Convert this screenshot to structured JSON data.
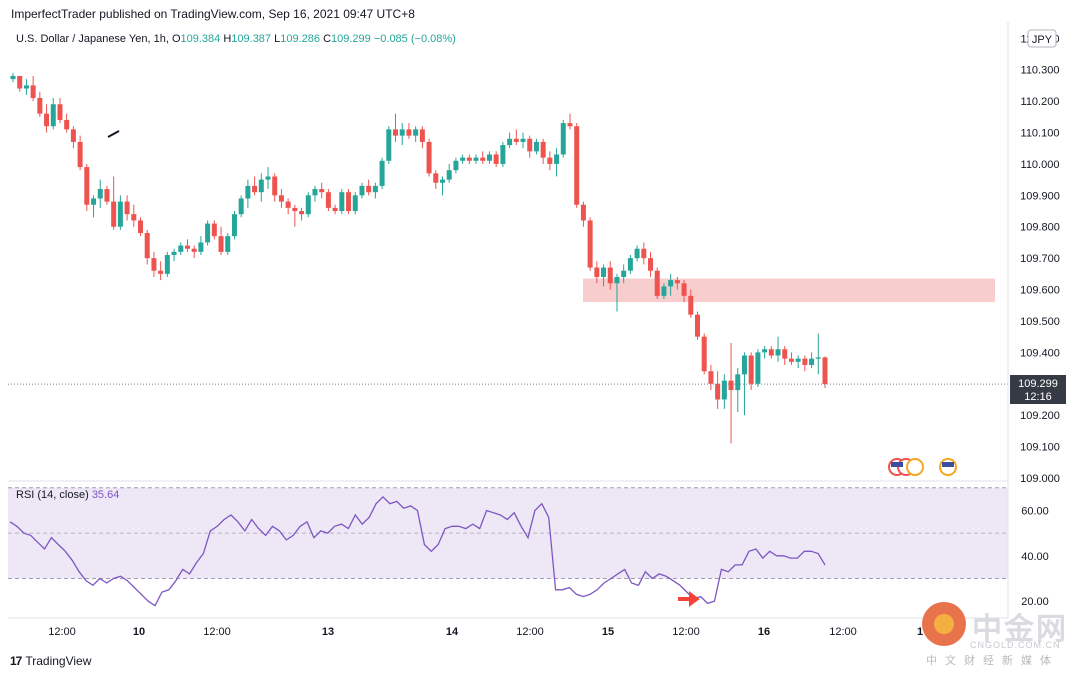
{
  "header": {
    "caption": "ImperfectTrader published on TradingView.com, Sep 16, 2021 09:47 UTC+8",
    "symbol": "U.S. Dollar / Japanese Yen, 1h, ",
    "o_label": "O",
    "o_value": "109.384",
    "h_label": "H",
    "h_value": "109.387",
    "l_label": "L",
    "l_value": "109.286",
    "c_label": "C",
    "c_value": "109.299",
    "change": "−0.085 (−0.08%)"
  },
  "currency_badge": "JPY",
  "last_price": {
    "value": "109.299",
    "countdown": "12:16"
  },
  "rsi": {
    "label": "RSI (14, close)",
    "value": "35.64"
  },
  "footer": {
    "logo_mark": "17",
    "logo_text": "TradingView"
  },
  "watermark": {
    "cn": "中金网",
    "url": "CNGOLD.COM.CN",
    "sub": "中文财经新媒体"
  },
  "colors": {
    "up": "#26a69a",
    "down": "#ef5350",
    "rsi_line": "#7e57c2",
    "zone": "#f8cdcd",
    "rsi_band": "#ede7f6"
  },
  "chart_data": [
    {
      "type": "candlestick",
      "ylim": [
        109.0,
        110.42
      ],
      "y_ticks": [
        "109.000",
        "109.100",
        "109.200",
        "109.300",
        "109.400",
        "109.500",
        "109.600",
        "109.700",
        "109.800",
        "109.900",
        "110.000",
        "110.100",
        "110.200",
        "110.300",
        "110.400"
      ],
      "x_ticks": [
        "12:00",
        "10",
        "12:00",
        "13",
        "14",
        "12:00",
        "15",
        "12:00",
        "16",
        "12:00",
        "1"
      ],
      "zone": {
        "low": 109.56,
        "high": 109.635
      },
      "candles": [
        [
          110.27,
          110.29,
          110.26,
          110.28
        ],
        [
          110.28,
          110.28,
          110.23,
          110.24
        ],
        [
          110.24,
          110.27,
          110.22,
          110.25
        ],
        [
          110.25,
          110.28,
          110.2,
          110.21
        ],
        [
          110.21,
          110.23,
          110.15,
          110.16
        ],
        [
          110.16,
          110.19,
          110.1,
          110.12
        ],
        [
          110.12,
          110.21,
          110.11,
          110.19
        ],
        [
          110.19,
          110.21,
          110.13,
          110.14
        ],
        [
          110.14,
          110.16,
          110.1,
          110.11
        ],
        [
          110.11,
          110.12,
          110.05,
          110.07
        ],
        [
          110.07,
          110.09,
          109.98,
          109.99
        ],
        [
          109.99,
          110.0,
          109.85,
          109.87
        ],
        [
          109.87,
          109.9,
          109.83,
          109.89
        ],
        [
          109.89,
          109.95,
          109.86,
          109.92
        ],
        [
          109.92,
          109.93,
          109.87,
          109.88
        ],
        [
          109.88,
          109.96,
          109.79,
          109.8
        ],
        [
          109.8,
          109.9,
          109.79,
          109.88
        ],
        [
          109.88,
          109.9,
          109.82,
          109.84
        ],
        [
          109.84,
          109.87,
          109.8,
          109.82
        ],
        [
          109.82,
          109.83,
          109.77,
          109.78
        ],
        [
          109.78,
          109.79,
          109.68,
          109.7
        ],
        [
          109.7,
          109.72,
          109.64,
          109.66
        ],
        [
          109.66,
          109.69,
          109.63,
          109.65
        ],
        [
          109.65,
          109.72,
          109.64,
          109.71
        ],
        [
          109.71,
          109.73,
          109.69,
          109.72
        ],
        [
          109.72,
          109.75,
          109.71,
          109.74
        ],
        [
          109.74,
          109.76,
          109.72,
          109.73
        ],
        [
          109.73,
          109.74,
          109.7,
          109.72
        ],
        [
          109.72,
          109.77,
          109.71,
          109.75
        ],
        [
          109.75,
          109.82,
          109.74,
          109.81
        ],
        [
          109.81,
          109.82,
          109.76,
          109.77
        ],
        [
          109.77,
          109.8,
          109.71,
          109.72
        ],
        [
          109.72,
          109.78,
          109.71,
          109.77
        ],
        [
          109.77,
          109.85,
          109.76,
          109.84
        ],
        [
          109.84,
          109.9,
          109.83,
          109.89
        ],
        [
          109.89,
          109.95,
          109.86,
          109.93
        ],
        [
          109.93,
          109.96,
          109.9,
          109.91
        ],
        [
          109.91,
          109.97,
          109.88,
          109.95
        ],
        [
          109.95,
          109.99,
          109.92,
          109.96
        ],
        [
          109.96,
          109.97,
          109.88,
          109.9
        ],
        [
          109.9,
          109.92,
          109.86,
          109.88
        ],
        [
          109.88,
          109.89,
          109.84,
          109.86
        ],
        [
          109.86,
          109.87,
          109.8,
          109.85
        ],
        [
          109.85,
          109.86,
          109.82,
          109.84
        ],
        [
          109.84,
          109.91,
          109.83,
          109.9
        ],
        [
          109.9,
          109.93,
          109.88,
          109.92
        ],
        [
          109.92,
          109.94,
          109.89,
          109.91
        ],
        [
          109.91,
          109.92,
          109.85,
          109.86
        ],
        [
          109.86,
          109.87,
          109.84,
          109.85
        ],
        [
          109.85,
          109.92,
          109.84,
          109.91
        ],
        [
          109.91,
          109.92,
          109.84,
          109.85
        ],
        [
          109.85,
          109.91,
          109.84,
          109.9
        ],
        [
          109.9,
          109.94,
          109.89,
          109.93
        ],
        [
          109.93,
          109.95,
          109.9,
          109.91
        ],
        [
          109.91,
          109.94,
          109.89,
          109.93
        ],
        [
          109.93,
          110.02,
          109.92,
          110.01
        ],
        [
          110.01,
          110.12,
          110.0,
          110.11
        ],
        [
          110.11,
          110.16,
          110.07,
          110.09
        ],
        [
          110.09,
          110.13,
          110.06,
          110.11
        ],
        [
          110.11,
          110.13,
          110.08,
          110.09
        ],
        [
          110.09,
          110.12,
          110.07,
          110.11
        ],
        [
          110.11,
          110.12,
          110.05,
          110.07
        ],
        [
          110.07,
          110.08,
          109.96,
          109.97
        ],
        [
          109.97,
          109.98,
          109.92,
          109.94
        ],
        [
          109.94,
          109.96,
          109.9,
          109.95
        ],
        [
          109.95,
          110.0,
          109.94,
          109.98
        ],
        [
          109.98,
          110.02,
          109.97,
          110.01
        ],
        [
          110.01,
          110.03,
          110.0,
          110.02
        ],
        [
          110.02,
          110.03,
          110.0,
          110.01
        ],
        [
          110.01,
          110.03,
          110.0,
          110.02
        ],
        [
          110.02,
          110.04,
          110.0,
          110.01
        ],
        [
          110.01,
          110.04,
          110.0,
          110.03
        ],
        [
          110.03,
          110.04,
          109.99,
          110.0
        ],
        [
          110.0,
          110.07,
          109.99,
          110.06
        ],
        [
          110.06,
          110.1,
          110.05,
          110.08
        ],
        [
          110.08,
          110.11,
          110.06,
          110.07
        ],
        [
          110.07,
          110.1,
          110.05,
          110.08
        ],
        [
          110.08,
          110.09,
          110.02,
          110.04
        ],
        [
          110.04,
          110.08,
          110.03,
          110.07
        ],
        [
          110.07,
          110.08,
          110.0,
          110.02
        ],
        [
          110.02,
          110.04,
          109.98,
          110.0
        ],
        [
          110.0,
          110.05,
          109.96,
          110.03
        ],
        [
          110.03,
          110.14,
          110.02,
          110.13
        ],
        [
          110.13,
          110.16,
          110.11,
          110.12
        ],
        [
          110.12,
          110.13,
          109.86,
          109.87
        ],
        [
          109.87,
          109.88,
          109.8,
          109.82
        ],
        [
          109.82,
          109.83,
          109.66,
          109.67
        ],
        [
          109.67,
          109.69,
          109.62,
          109.64
        ],
        [
          109.64,
          109.68,
          109.61,
          109.67
        ],
        [
          109.67,
          109.69,
          109.6,
          109.62
        ],
        [
          109.62,
          109.65,
          109.53,
          109.64
        ],
        [
          109.64,
          109.68,
          109.62,
          109.66
        ],
        [
          109.66,
          109.71,
          109.65,
          109.7
        ],
        [
          109.7,
          109.74,
          109.69,
          109.73
        ],
        [
          109.73,
          109.75,
          109.68,
          109.7
        ],
        [
          109.7,
          109.72,
          109.64,
          109.66
        ],
        [
          109.66,
          109.67,
          109.57,
          109.58
        ],
        [
          109.58,
          109.62,
          109.57,
          109.61
        ],
        [
          109.61,
          109.65,
          109.58,
          109.63
        ],
        [
          109.63,
          109.64,
          109.6,
          109.62
        ],
        [
          109.62,
          109.63,
          109.56,
          109.58
        ],
        [
          109.58,
          109.6,
          109.51,
          109.52
        ],
        [
          109.52,
          109.53,
          109.44,
          109.45
        ],
        [
          109.45,
          109.46,
          109.33,
          109.34
        ],
        [
          109.34,
          109.36,
          109.28,
          109.3
        ],
        [
          109.3,
          109.34,
          109.22,
          109.25
        ],
        [
          109.25,
          109.33,
          109.22,
          109.31
        ],
        [
          109.31,
          109.43,
          109.11,
          109.28
        ],
        [
          109.28,
          109.35,
          109.21,
          109.33
        ],
        [
          109.33,
          109.4,
          109.2,
          109.39
        ],
        [
          109.39,
          109.4,
          109.28,
          109.3
        ],
        [
          109.3,
          109.41,
          109.29,
          109.4
        ],
        [
          109.4,
          109.42,
          109.38,
          109.41
        ],
        [
          109.41,
          109.42,
          109.38,
          109.39
        ],
        [
          109.39,
          109.45,
          109.37,
          109.41
        ],
        [
          109.41,
          109.42,
          109.36,
          109.38
        ],
        [
          109.38,
          109.4,
          109.36,
          109.37
        ],
        [
          109.37,
          109.39,
          109.35,
          109.38
        ],
        [
          109.38,
          109.39,
          109.34,
          109.36
        ],
        [
          109.36,
          109.4,
          109.35,
          109.38
        ],
        [
          109.38,
          109.46,
          109.33,
          109.384
        ],
        [
          109.384,
          109.387,
          109.286,
          109.299
        ]
      ]
    },
    {
      "type": "line",
      "name": "RSI (14, close)",
      "ylim": [
        13,
        73
      ],
      "y_ticks": [
        "20.00",
        "40.00",
        "60.00"
      ],
      "band": [
        30,
        70
      ],
      "midline": 50,
      "values": [
        55,
        53,
        50,
        49,
        46,
        43,
        48,
        45,
        42,
        38,
        33,
        29,
        27,
        30,
        28,
        30,
        31,
        29,
        26,
        23,
        20,
        18,
        24,
        25,
        29,
        34,
        32,
        37,
        41,
        51,
        53,
        56,
        58,
        55,
        51,
        56,
        52,
        49,
        53,
        51,
        47,
        49,
        53,
        55,
        48,
        51,
        50,
        53,
        54,
        52,
        58,
        54,
        57,
        63,
        66,
        63,
        64,
        61,
        62,
        60,
        45,
        42,
        45,
        52,
        53,
        53,
        52,
        54,
        52,
        60,
        59,
        58,
        56,
        59,
        53,
        48,
        60,
        63,
        57,
        25,
        25,
        26,
        23,
        22,
        23,
        25,
        28,
        30,
        32,
        34,
        28,
        27,
        33,
        30,
        32,
        31,
        29,
        27,
        24,
        21,
        22,
        19,
        20,
        34,
        33,
        36,
        36,
        42,
        43,
        39,
        42,
        40,
        40,
        39,
        39,
        42,
        42,
        41,
        36
      ]
    }
  ]
}
